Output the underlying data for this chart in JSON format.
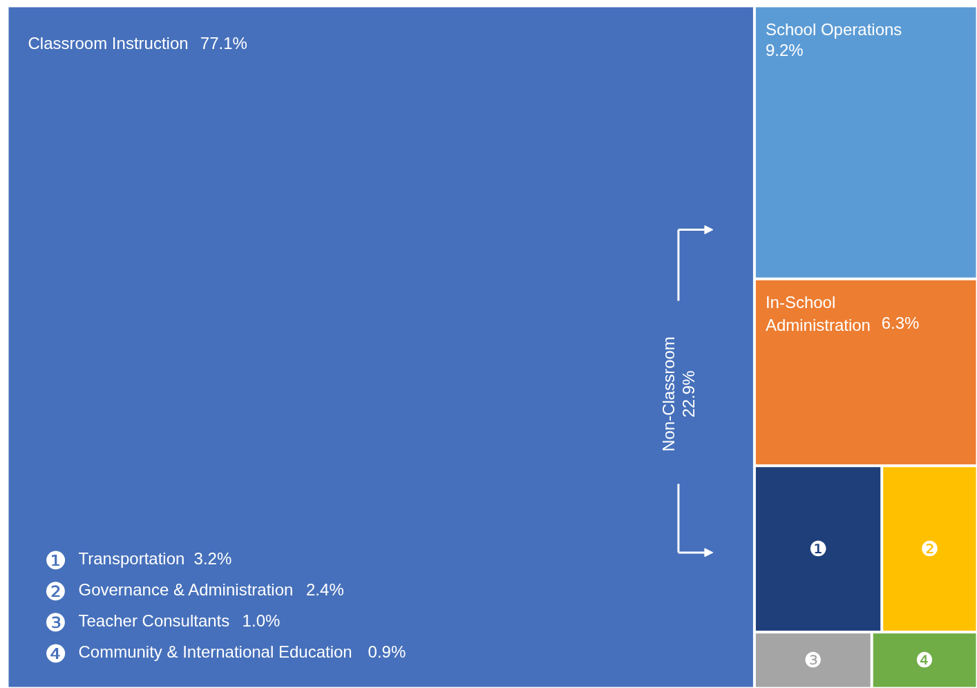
{
  "chart_data": {
    "type": "other",
    "categories": [
      "Classroom Instruction",
      "School Operations",
      "In-School Administration",
      "Transportation",
      "Governance & Administration",
      "Teacher Consultants",
      "Community & International Education"
    ],
    "values": [
      77.1,
      9.2,
      6.3,
      3.2,
      2.4,
      1.0,
      0.9
    ],
    "value_labels": [
      "77.1%",
      "9.2%",
      "6.3%",
      "3.2%",
      "2.4%",
      "1.0%",
      "0.9%"
    ],
    "colors": [
      "#4670bb",
      "#5b9bd5",
      "#ed7d31",
      "#1f3f7a",
      "#ffc000",
      "#a5a5a5",
      "#70ad47"
    ],
    "annotations": [
      "Non-Classroom\n22.9%",
      "❶",
      "❷",
      "❸",
      "❹"
    ]
  }
}
